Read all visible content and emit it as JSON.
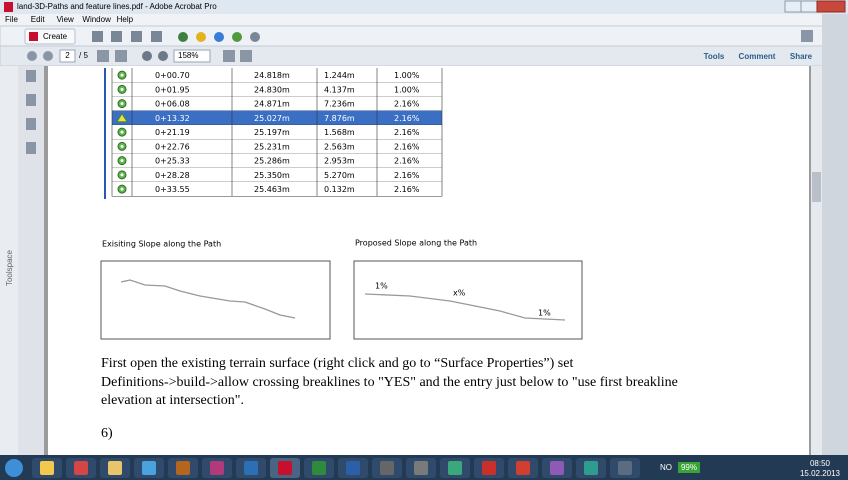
{
  "window": {
    "title": "land-3D-Paths and feature lines.pdf - Adobe Acrobat Pro"
  },
  "menu": [
    "File",
    "Edit",
    "View",
    "Window",
    "Help"
  ],
  "toolbar": {
    "create": "Create",
    "page": "2",
    "page_count": "/ 5",
    "zoom": "158%",
    "tools": "Tools",
    "comment": "Comment",
    "share": "Share"
  },
  "sidebar": {
    "label": "Toolspace"
  },
  "table": {
    "rows": [
      [
        "0+00.70",
        "24.818m",
        "1.244m",
        "1.00%"
      ],
      [
        "0+01.95",
        "24.830m",
        "4.137m",
        "1.00%"
      ],
      [
        "0+06.08",
        "24.871m",
        "7.236m",
        "2.16%"
      ],
      [
        "0+13.32",
        "25.027m",
        "7.876m",
        "2.16%"
      ],
      [
        "0+21.19",
        "25.197m",
        "1.568m",
        "2.16%"
      ],
      [
        "0+22.76",
        "25.231m",
        "2.563m",
        "2.16%"
      ],
      [
        "0+25.33",
        "25.286m",
        "2.953m",
        "2.16%"
      ],
      [
        "0+28.28",
        "25.350m",
        "5.270m",
        "2.16%"
      ],
      [
        "0+33.55",
        "25.463m",
        "0.132m",
        "2.16%"
      ]
    ]
  },
  "figures": [
    {
      "caption": "Exisiting Slope along the Path"
    },
    {
      "caption": "Proposed Slope along the Path",
      "labels": [
        "1%",
        "x%",
        "1%"
      ]
    }
  ],
  "paragraph": {
    "lines": [
      "First open the existing terrain surface (right click and go to “Surface Properties”) set",
      "Definitions->build->allow crossing breaklines to \"YES\" and the entry just below to \"use first breakline",
      "elevation at intersection\"."
    ]
  },
  "step": "6)",
  "taskbar": {
    "language": "NO",
    "battery": "99%",
    "time": "08:50",
    "date": "15.02.2013"
  }
}
